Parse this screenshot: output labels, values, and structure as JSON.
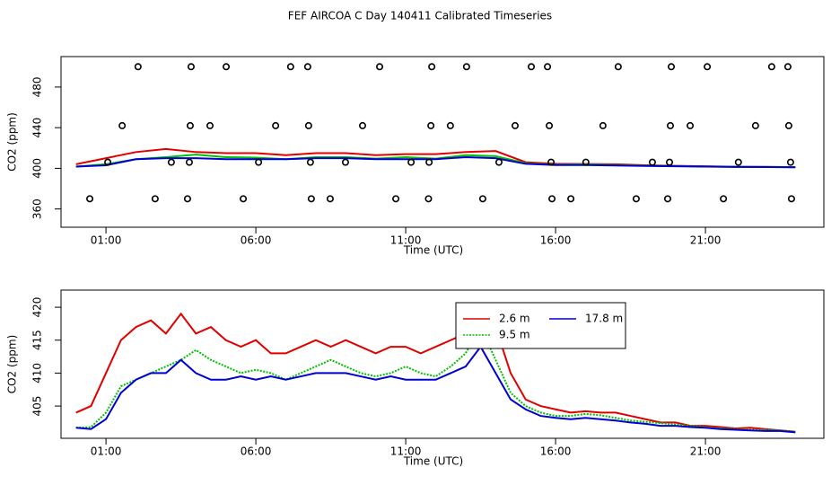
{
  "chart_data": [
    {
      "type": "line",
      "title": "FEF AIRCOA C  Day 140411  Calibrated Timeseries",
      "xlabel": "Time (UTC)",
      "ylabel": "CO2 (ppm)",
      "xlim": [
        -0.5,
        24.95
      ],
      "ylim": [
        342,
        510
      ],
      "xticks": [
        {
          "value": 1,
          "label": "01:00"
        },
        {
          "value": 6,
          "label": "06:00"
        },
        {
          "value": 11,
          "label": "11:00"
        },
        {
          "value": 16,
          "label": "16:00"
        },
        {
          "value": 21,
          "label": "21:00"
        }
      ],
      "yticks": [
        360,
        400,
        440,
        480
      ],
      "x": [
        0,
        1,
        2,
        3,
        4,
        5,
        6,
        7,
        8,
        9,
        10,
        11,
        12,
        13,
        14,
        15,
        16,
        17,
        18,
        19,
        20,
        21,
        22,
        23,
        24
      ],
      "series": [
        {
          "color": "#e00000",
          "values": [
            404,
            410,
            416,
            419,
            416,
            415,
            415,
            413,
            415,
            415,
            413,
            414,
            414,
            416,
            417,
            406,
            404.5,
            404.2,
            404,
            403,
            402.5,
            402,
            401.6,
            401.5,
            401.1
          ]
        },
        {
          "color": "#00c000",
          "values": [
            401.7,
            404,
            409,
            411,
            413.5,
            411,
            410.5,
            409,
            411,
            411,
            409.5,
            411,
            409.5,
            413,
            412,
            405,
            403.5,
            403.8,
            403.2,
            402.6,
            402.2,
            401.8,
            401.5,
            401.4,
            401.1
          ]
        },
        {
          "color": "#0000d0",
          "values": [
            401.7,
            403,
            409,
            410,
            410,
            409,
            409,
            409,
            410,
            410,
            409,
            409,
            409,
            411,
            410,
            404.5,
            403.2,
            403.2,
            402.8,
            402.3,
            402,
            401.7,
            401.4,
            401.2,
            401.0
          ]
        }
      ],
      "points": {
        "color": "#000000",
        "x": [
          2.07,
          3.84,
          5.01,
          7.16,
          7.73,
          10.13,
          11.87,
          13.03,
          15.19,
          15.73,
          18.09,
          19.86,
          21.06,
          23.21,
          23.75,
          1.54,
          3.81,
          4.47,
          6.66,
          7.76,
          9.56,
          11.84,
          12.49,
          14.65,
          15.79,
          17.58,
          19.83,
          20.49,
          22.67,
          23.78,
          1.06,
          3.18,
          3.78,
          6.09,
          7.82,
          8.99,
          11.18,
          11.78,
          14.11,
          15.85,
          17.01,
          19.23,
          19.8,
          22.1,
          23.84,
          0.46,
          2.64,
          3.72,
          5.58,
          7.85,
          8.48,
          10.67,
          11.76,
          13.57,
          15.88,
          16.51,
          18.69,
          19.74,
          21.6,
          23.87
        ],
        "y": [
          500,
          500,
          500,
          500,
          500,
          500,
          500,
          500,
          500,
          500,
          500,
          500,
          500,
          500,
          500,
          442,
          442,
          442,
          442,
          442,
          442,
          442,
          442,
          442,
          442,
          442,
          442,
          442,
          442,
          442,
          406,
          406,
          406,
          406,
          406,
          406,
          406,
          406,
          406,
          406,
          406,
          406,
          406,
          406,
          406,
          370,
          370,
          370,
          370,
          370,
          370,
          370,
          370,
          370,
          370,
          370,
          370,
          370,
          370,
          370
        ]
      }
    },
    {
      "type": "line",
      "xlabel": "Time (UTC)",
      "ylabel": "CO2 (ppm)",
      "xlim": [
        -0.5,
        24.95
      ],
      "ylim": [
        400.1,
        422.6
      ],
      "xticks": [
        {
          "value": 1,
          "label": "01:00"
        },
        {
          "value": 6,
          "label": "06:00"
        },
        {
          "value": 11,
          "label": "11:00"
        },
        {
          "value": 16,
          "label": "16:00"
        },
        {
          "value": 21,
          "label": "21:00"
        }
      ],
      "yticks": [
        405,
        410,
        415,
        420
      ],
      "legend": true,
      "x": [
        0,
        0.5,
        1,
        1.5,
        2,
        2.5,
        3,
        3.5,
        4,
        4.5,
        5,
        5.5,
        6,
        6.5,
        7,
        7.5,
        8,
        8.5,
        9,
        9.5,
        10,
        10.5,
        11,
        11.5,
        12,
        12.5,
        13,
        13.5,
        14,
        14.5,
        15,
        15.5,
        16,
        16.5,
        17,
        17.5,
        18,
        18.5,
        19,
        19.5,
        20,
        20.5,
        21,
        21.5,
        22,
        22.5,
        23,
        23.5,
        24
      ],
      "series": [
        {
          "name": "2.6 m",
          "color": "#e00000",
          "dash": false,
          "values": [
            404,
            405,
            410,
            415,
            417,
            418,
            416,
            419,
            416,
            417,
            415,
            414,
            415,
            413,
            413,
            414,
            415,
            414,
            415,
            414,
            413,
            414,
            414,
            413,
            414,
            415,
            416,
            420,
            417,
            410,
            406,
            405,
            404.5,
            404,
            404.2,
            404,
            404,
            403.5,
            403,
            402.5,
            402.5,
            402,
            402,
            401.8,
            401.6,
            401.7,
            401.5,
            401.3,
            401.1
          ]
        },
        {
          "name": "9.5 m",
          "color": "#00c000",
          "dash": true,
          "values": [
            401.7,
            401.8,
            404,
            408,
            409,
            410,
            411,
            412,
            413.5,
            412,
            411,
            410,
            410.5,
            410,
            409,
            410,
            411,
            412,
            411,
            410,
            409.5,
            410,
            411,
            410,
            409.5,
            411,
            413,
            417,
            412,
            407,
            405,
            404,
            403.5,
            403.5,
            403.8,
            403.6,
            403.2,
            402.8,
            402.6,
            402.4,
            402.2,
            402,
            401.8,
            401.6,
            401.5,
            401.4,
            401.4,
            401.3,
            401.1
          ]
        },
        {
          "name": "17.8 m",
          "color": "#0000d0",
          "dash": false,
          "values": [
            401.7,
            401.5,
            403,
            407,
            409,
            410,
            410,
            412,
            410,
            409,
            409,
            409.5,
            409,
            409.5,
            409,
            409.5,
            410,
            410,
            410,
            409.5,
            409,
            409.5,
            409,
            409,
            409,
            410,
            411,
            414,
            410,
            406,
            404.5,
            403.5,
            403.2,
            403,
            403.2,
            403,
            402.8,
            402.5,
            402.3,
            402,
            402,
            401.8,
            401.7,
            401.5,
            401.4,
            401.3,
            401.2,
            401.2,
            401.0
          ]
        }
      ]
    }
  ]
}
